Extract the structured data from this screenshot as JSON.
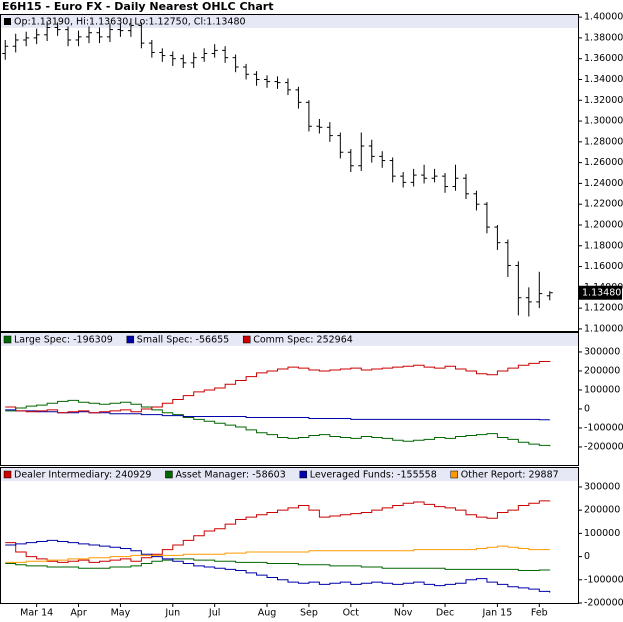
{
  "chart_data": [
    {
      "type": "ohlc",
      "title": "E6H15 - Euro FX - Daily Nearest OHLC Chart",
      "header": "Op:1.13190, Hi:1.13630, Lo:1.12750, Cl:1.13480",
      "last_label": "1.13480",
      "color": "#000000",
      "categories": [
        null,
        null,
        null,
        "Mar 14",
        null,
        null,
        null,
        "Apr",
        null,
        null,
        null,
        "May",
        null,
        null,
        null,
        null,
        "Jun",
        null,
        null,
        null,
        "Jul",
        null,
        null,
        null,
        null,
        "Aug",
        null,
        null,
        null,
        "Sep",
        null,
        null,
        null,
        "Oct",
        null,
        null,
        null,
        null,
        "Nov",
        null,
        null,
        null,
        "Dec",
        null,
        null,
        null,
        null,
        "Jan 15",
        null,
        null,
        null,
        "Feb",
        null
      ],
      "open": [
        1.365,
        1.372,
        1.378,
        1.38,
        1.383,
        1.39,
        1.388,
        1.378,
        1.381,
        1.385,
        1.381,
        1.388,
        1.387,
        1.392,
        1.375,
        1.366,
        1.363,
        1.36,
        1.356,
        1.361,
        1.365,
        1.368,
        1.361,
        1.352,
        1.345,
        1.34,
        1.338,
        1.337,
        1.33,
        1.318,
        1.295,
        1.294,
        1.286,
        1.27,
        1.257,
        1.276,
        1.266,
        1.262,
        1.247,
        1.241,
        1.248,
        1.245,
        1.247,
        1.237,
        1.245,
        1.23,
        1.22,
        1.198,
        1.183,
        1.161,
        1.13,
        1.126,
        1.1319
      ],
      "high": [
        1.378,
        1.384,
        1.386,
        1.389,
        1.396,
        1.395,
        1.391,
        1.387,
        1.391,
        1.39,
        1.394,
        1.394,
        1.399,
        1.395,
        1.378,
        1.37,
        1.367,
        1.364,
        1.366,
        1.37,
        1.374,
        1.372,
        1.364,
        1.355,
        1.348,
        1.344,
        1.343,
        1.341,
        1.333,
        1.32,
        1.302,
        1.299,
        1.289,
        1.273,
        1.289,
        1.282,
        1.271,
        1.265,
        1.251,
        1.254,
        1.258,
        1.254,
        1.25,
        1.258,
        1.249,
        1.233,
        1.222,
        1.2,
        1.186,
        1.165,
        1.14,
        1.155,
        1.1363
      ],
      "low": [
        1.359,
        1.366,
        1.372,
        1.374,
        1.377,
        1.382,
        1.372,
        1.372,
        1.375,
        1.375,
        1.376,
        1.381,
        1.381,
        1.37,
        1.361,
        1.357,
        1.353,
        1.351,
        1.351,
        1.357,
        1.361,
        1.356,
        1.347,
        1.34,
        1.334,
        1.332,
        1.331,
        1.325,
        1.312,
        1.29,
        1.288,
        1.28,
        1.264,
        1.251,
        1.252,
        1.26,
        1.255,
        1.241,
        1.236,
        1.237,
        1.24,
        1.241,
        1.231,
        1.233,
        1.225,
        1.214,
        1.192,
        1.176,
        1.15,
        1.113,
        1.112,
        1.12,
        1.1275
      ],
      "close": [
        1.372,
        1.378,
        1.38,
        1.383,
        1.39,
        1.388,
        1.378,
        1.381,
        1.385,
        1.381,
        1.388,
        1.387,
        1.392,
        1.375,
        1.366,
        1.363,
        1.36,
        1.356,
        1.361,
        1.365,
        1.368,
        1.361,
        1.352,
        1.345,
        1.34,
        1.338,
        1.337,
        1.33,
        1.318,
        1.295,
        1.294,
        1.286,
        1.27,
        1.257,
        1.276,
        1.266,
        1.262,
        1.247,
        1.241,
        1.248,
        1.245,
        1.247,
        1.237,
        1.245,
        1.23,
        1.22,
        1.198,
        1.183,
        1.161,
        1.13,
        1.126,
        1.134,
        1.1348
      ],
      "ylim": [
        1.098,
        1.403
      ],
      "yticks": [
        {
          "value": 1.1,
          "label": "1.10000"
        },
        {
          "value": 1.12,
          "label": "1.12000"
        },
        {
          "value": 1.14,
          "label": "1.14000"
        },
        {
          "value": 1.16,
          "label": "1.16000"
        },
        {
          "value": 1.18,
          "label": "1.18000"
        },
        {
          "value": 1.2,
          "label": "1.20000"
        },
        {
          "value": 1.22,
          "label": "1.22000"
        },
        {
          "value": 1.24,
          "label": "1.24000"
        },
        {
          "value": 1.26,
          "label": "1.26000"
        },
        {
          "value": 1.28,
          "label": "1.28000"
        },
        {
          "value": 1.3,
          "label": "1.30000"
        },
        {
          "value": 1.32,
          "label": "1.32000"
        },
        {
          "value": 1.34,
          "label": "1.34000"
        },
        {
          "value": 1.36,
          "label": "1.36000"
        },
        {
          "value": 1.38,
          "label": "1.38000"
        },
        {
          "value": 1.4,
          "label": "1.40000"
        }
      ]
    },
    {
      "type": "step",
      "ylim": [
        -295000,
        405000
      ],
      "yticks": [
        -200000,
        -100000,
        0,
        100000,
        200000,
        300000
      ],
      "series": [
        {
          "name": "Large Spec: -196309",
          "color": "#006600",
          "values": [
            -10000,
            5000,
            15000,
            20000,
            30000,
            40000,
            45000,
            35000,
            30000,
            25000,
            30000,
            35000,
            25000,
            10000,
            -5000,
            -20000,
            -30000,
            -45000,
            -55000,
            -65000,
            -75000,
            -85000,
            -95000,
            -110000,
            -125000,
            -135000,
            -150000,
            -155000,
            -150000,
            -140000,
            -135000,
            -145000,
            -150000,
            -155000,
            -145000,
            -150000,
            -155000,
            -165000,
            -170000,
            -165000,
            -160000,
            -150000,
            -155000,
            -145000,
            -140000,
            -135000,
            -130000,
            -150000,
            -160000,
            -175000,
            -185000,
            -192000,
            -196309
          ]
        },
        {
          "name": "Small Spec: -56655",
          "color": "#0000aa",
          "values": [
            -5000,
            -10000,
            -10000,
            -15000,
            -15000,
            -20000,
            -20000,
            -15000,
            -20000,
            -20000,
            -25000,
            -25000,
            -25000,
            -30000,
            -30000,
            -35000,
            -35000,
            -40000,
            -40000,
            -40000,
            -40000,
            -40000,
            -40000,
            -45000,
            -45000,
            -45000,
            -45000,
            -45000,
            -45000,
            -50000,
            -50000,
            -50000,
            -50000,
            -55000,
            -55000,
            -55000,
            -55000,
            -55000,
            -55000,
            -55000,
            -55000,
            -55000,
            -55000,
            -55000,
            -55000,
            -55000,
            -55000,
            -55000,
            -55000,
            -55000,
            -55000,
            -57000,
            -56655
          ]
        },
        {
          "name": "Comm Spec: 252964",
          "color": "#cc0000",
          "values": [
            10000,
            -10000,
            -15000,
            -10000,
            -5000,
            -20000,
            -15000,
            -10000,
            -20000,
            -15000,
            -10000,
            -5000,
            -15000,
            0,
            10000,
            30000,
            50000,
            70000,
            90000,
            100000,
            110000,
            130000,
            150000,
            170000,
            190000,
            200000,
            210000,
            220000,
            215000,
            205000,
            200000,
            205000,
            210000,
            215000,
            205000,
            210000,
            215000,
            220000,
            225000,
            230000,
            220000,
            215000,
            225000,
            210000,
            200000,
            185000,
            180000,
            200000,
            215000,
            230000,
            240000,
            250000,
            252964
          ]
        }
      ]
    },
    {
      "type": "step",
      "ylim": [
        -200000,
        386000
      ],
      "yticks": [
        -200000,
        -100000,
        0,
        100000,
        200000,
        300000
      ],
      "series": [
        {
          "name": "Dealer Intermediary: 240929",
          "color": "#cc0000",
          "values": [
            60000,
            20000,
            0,
            -10000,
            -20000,
            -25000,
            -20000,
            -15000,
            -25000,
            -20000,
            -15000,
            -10000,
            -20000,
            -5000,
            10000,
            30000,
            50000,
            70000,
            90000,
            110000,
            120000,
            140000,
            160000,
            170000,
            180000,
            190000,
            200000,
            210000,
            220000,
            200000,
            170000,
            175000,
            180000,
            185000,
            190000,
            200000,
            210000,
            220000,
            230000,
            235000,
            225000,
            215000,
            210000,
            200000,
            180000,
            170000,
            165000,
            190000,
            200000,
            220000,
            230000,
            240000,
            240929
          ]
        },
        {
          "name": "Asset Manager: -58603",
          "color": "#006600",
          "values": [
            -30000,
            -35000,
            -40000,
            -40000,
            -45000,
            -45000,
            -45000,
            -50000,
            -50000,
            -50000,
            -45000,
            -45000,
            -40000,
            -30000,
            -20000,
            -15000,
            -10000,
            -10000,
            -15000,
            -15000,
            -20000,
            -20000,
            -25000,
            -25000,
            -25000,
            -30000,
            -30000,
            -30000,
            -35000,
            -35000,
            -35000,
            -40000,
            -40000,
            -40000,
            -45000,
            -45000,
            -50000,
            -50000,
            -50000,
            -50000,
            -50000,
            -50000,
            -55000,
            -55000,
            -55000,
            -55000,
            -55000,
            -55000,
            -55000,
            -60000,
            -60000,
            -58000,
            -58603
          ]
        },
        {
          "name": "Leveraged Funds: -155558",
          "color": "#0000aa",
          "values": [
            50000,
            55000,
            60000,
            65000,
            70000,
            65000,
            60000,
            55000,
            50000,
            45000,
            40000,
            35000,
            25000,
            10000,
            0,
            -10000,
            -20000,
            -30000,
            -40000,
            -45000,
            -50000,
            -55000,
            -60000,
            -70000,
            -80000,
            -90000,
            -100000,
            -110000,
            -115000,
            -110000,
            -120000,
            -115000,
            -110000,
            -120000,
            -115000,
            -110000,
            -115000,
            -120000,
            -115000,
            -110000,
            -120000,
            -125000,
            -120000,
            -115000,
            -100000,
            -95000,
            -110000,
            -120000,
            -130000,
            -135000,
            -140000,
            -150000,
            -155558
          ]
        },
        {
          "name": "Other Report: 29887",
          "color": "#ff9900",
          "values": [
            -25000,
            -25000,
            -20000,
            -20000,
            -15000,
            -15000,
            -10000,
            -10000,
            -5000,
            -5000,
            0,
            0,
            5000,
            5000,
            5000,
            5000,
            5000,
            10000,
            10000,
            10000,
            10000,
            15000,
            15000,
            20000,
            20000,
            20000,
            20000,
            20000,
            20000,
            25000,
            25000,
            25000,
            25000,
            25000,
            25000,
            25000,
            25000,
            25000,
            25000,
            30000,
            30000,
            30000,
            30000,
            30000,
            30000,
            35000,
            40000,
            45000,
            40000,
            35000,
            30000,
            30000,
            29887
          ]
        }
      ]
    }
  ]
}
